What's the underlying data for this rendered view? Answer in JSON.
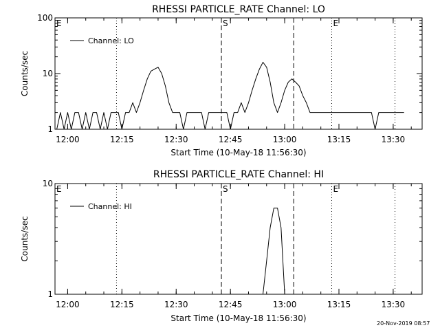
{
  "footer_timestamp": "20-Nov-2019 08:57",
  "chart_data": [
    {
      "type": "line",
      "title": "RHESSI PARTICLE_RATE Channel: LO",
      "xlabel": "Start Time (10-May-18 11:56:30)",
      "ylabel": "Counts/sec",
      "yscale": "log",
      "ylim": [
        1,
        100
      ],
      "xlim_minutes_of_day": [
        716.5,
        818
      ],
      "x_ticks": [
        "12:00",
        "12:15",
        "12:30",
        "12:45",
        "13:00",
        "13:15",
        "13:30"
      ],
      "y_ticks": [
        "1",
        "10",
        "100"
      ],
      "legend": {
        "position": "top-left",
        "label": "Channel: LO"
      },
      "markers": [
        {
          "label": "E",
          "time": "11:56:30",
          "style": "dotted"
        },
        {
          "label": "",
          "time": "12:13:30",
          "style": "dotted"
        },
        {
          "label": "S",
          "time": "12:42:30",
          "style": "dashed"
        },
        {
          "label": "",
          "time": "13:02:30",
          "style": "dashed"
        },
        {
          "label": "E",
          "time": "13:13:00",
          "style": "dotted"
        },
        {
          "label": "",
          "time": "13:30:30",
          "style": "dotted"
        }
      ],
      "series": [
        {
          "name": "Channel: LO",
          "x": [
            "11:57",
            "11:58",
            "11:59",
            "12:00",
            "12:01",
            "12:02",
            "12:03",
            "12:04",
            "12:05",
            "12:06",
            "12:07",
            "12:08",
            "12:09",
            "12:10",
            "12:11",
            "12:12",
            "12:13",
            "12:14",
            "12:15",
            "12:16",
            "12:17",
            "12:18",
            "12:19",
            "12:20",
            "12:21",
            "12:22",
            "12:23",
            "12:24",
            "12:25",
            "12:26",
            "12:27",
            "12:28",
            "12:29",
            "12:30",
            "12:31",
            "12:32",
            "12:33",
            "12:34",
            "12:35",
            "12:36",
            "12:37",
            "12:38",
            "12:39",
            "12:40",
            "12:41",
            "12:42",
            "12:43",
            "12:44",
            "12:45",
            "12:46",
            "12:47",
            "12:48",
            "12:49",
            "12:50",
            "12:51",
            "12:52",
            "12:53",
            "12:54",
            "12:55",
            "12:56",
            "12:57",
            "12:58",
            "12:59",
            "13:00",
            "13:01",
            "13:02",
            "13:03",
            "13:04",
            "13:05",
            "13:06",
            "13:07",
            "13:08",
            "13:09",
            "13:10",
            "13:11",
            "13:12",
            "13:13",
            "13:14",
            "13:15",
            "13:16",
            "13:17",
            "13:18",
            "13:19",
            "13:20",
            "13:21",
            "13:22",
            "13:23",
            "13:24",
            "13:25",
            "13:26",
            "13:27",
            "13:28",
            "13:29",
            "13:30",
            "13:31",
            "13:32",
            "13:33"
          ],
          "values": [
            1,
            2,
            1,
            2,
            1,
            2,
            2,
            1,
            2,
            1,
            2,
            2,
            1,
            2,
            1,
            2,
            2,
            2,
            1,
            2,
            2,
            3,
            2,
            3,
            5,
            8,
            11,
            12,
            13,
            10,
            6,
            3,
            2,
            2,
            2,
            1,
            2,
            2,
            2,
            2,
            2,
            1,
            2,
            2,
            2,
            2,
            2,
            2,
            1,
            2,
            2,
            3,
            2,
            3,
            5,
            8,
            12,
            16,
            13,
            7,
            3,
            2,
            3,
            5,
            7,
            8,
            7,
            6,
            4,
            3,
            2,
            2,
            2,
            2,
            2,
            2,
            2,
            2,
            2,
            2,
            2,
            2,
            2,
            2,
            2,
            2,
            2,
            2,
            1,
            2,
            2,
            2,
            2,
            2,
            2,
            2,
            2
          ]
        }
      ]
    },
    {
      "type": "line",
      "title": "RHESSI PARTICLE_RATE Channel: HI",
      "xlabel": "Start Time (10-May-18 11:56:30)",
      "ylabel": "Counts/sec",
      "yscale": "log",
      "ylim": [
        1,
        10
      ],
      "xlim_minutes_of_day": [
        716.5,
        818
      ],
      "x_ticks": [
        "12:00",
        "12:15",
        "12:30",
        "12:45",
        "13:00",
        "13:15",
        "13:30"
      ],
      "y_ticks": [
        "1",
        "10"
      ],
      "legend": {
        "position": "top-left",
        "label": "Channel: HI"
      },
      "markers": [
        {
          "label": "E",
          "time": "11:56:30",
          "style": "dotted"
        },
        {
          "label": "",
          "time": "12:13:30",
          "style": "dotted"
        },
        {
          "label": "S",
          "time": "12:42:30",
          "style": "dashed"
        },
        {
          "label": "",
          "time": "13:02:30",
          "style": "dashed"
        },
        {
          "label": "E",
          "time": "13:13:00",
          "style": "dotted"
        },
        {
          "label": "",
          "time": "13:30:30",
          "style": "dotted"
        }
      ],
      "series": [
        {
          "name": "Channel: HI",
          "x": [
            "12:54",
            "12:55",
            "12:56",
            "12:57",
            "12:58",
            "12:59",
            "13:00"
          ],
          "values": [
            1,
            2,
            4,
            6,
            6,
            4,
            1
          ]
        }
      ]
    }
  ]
}
